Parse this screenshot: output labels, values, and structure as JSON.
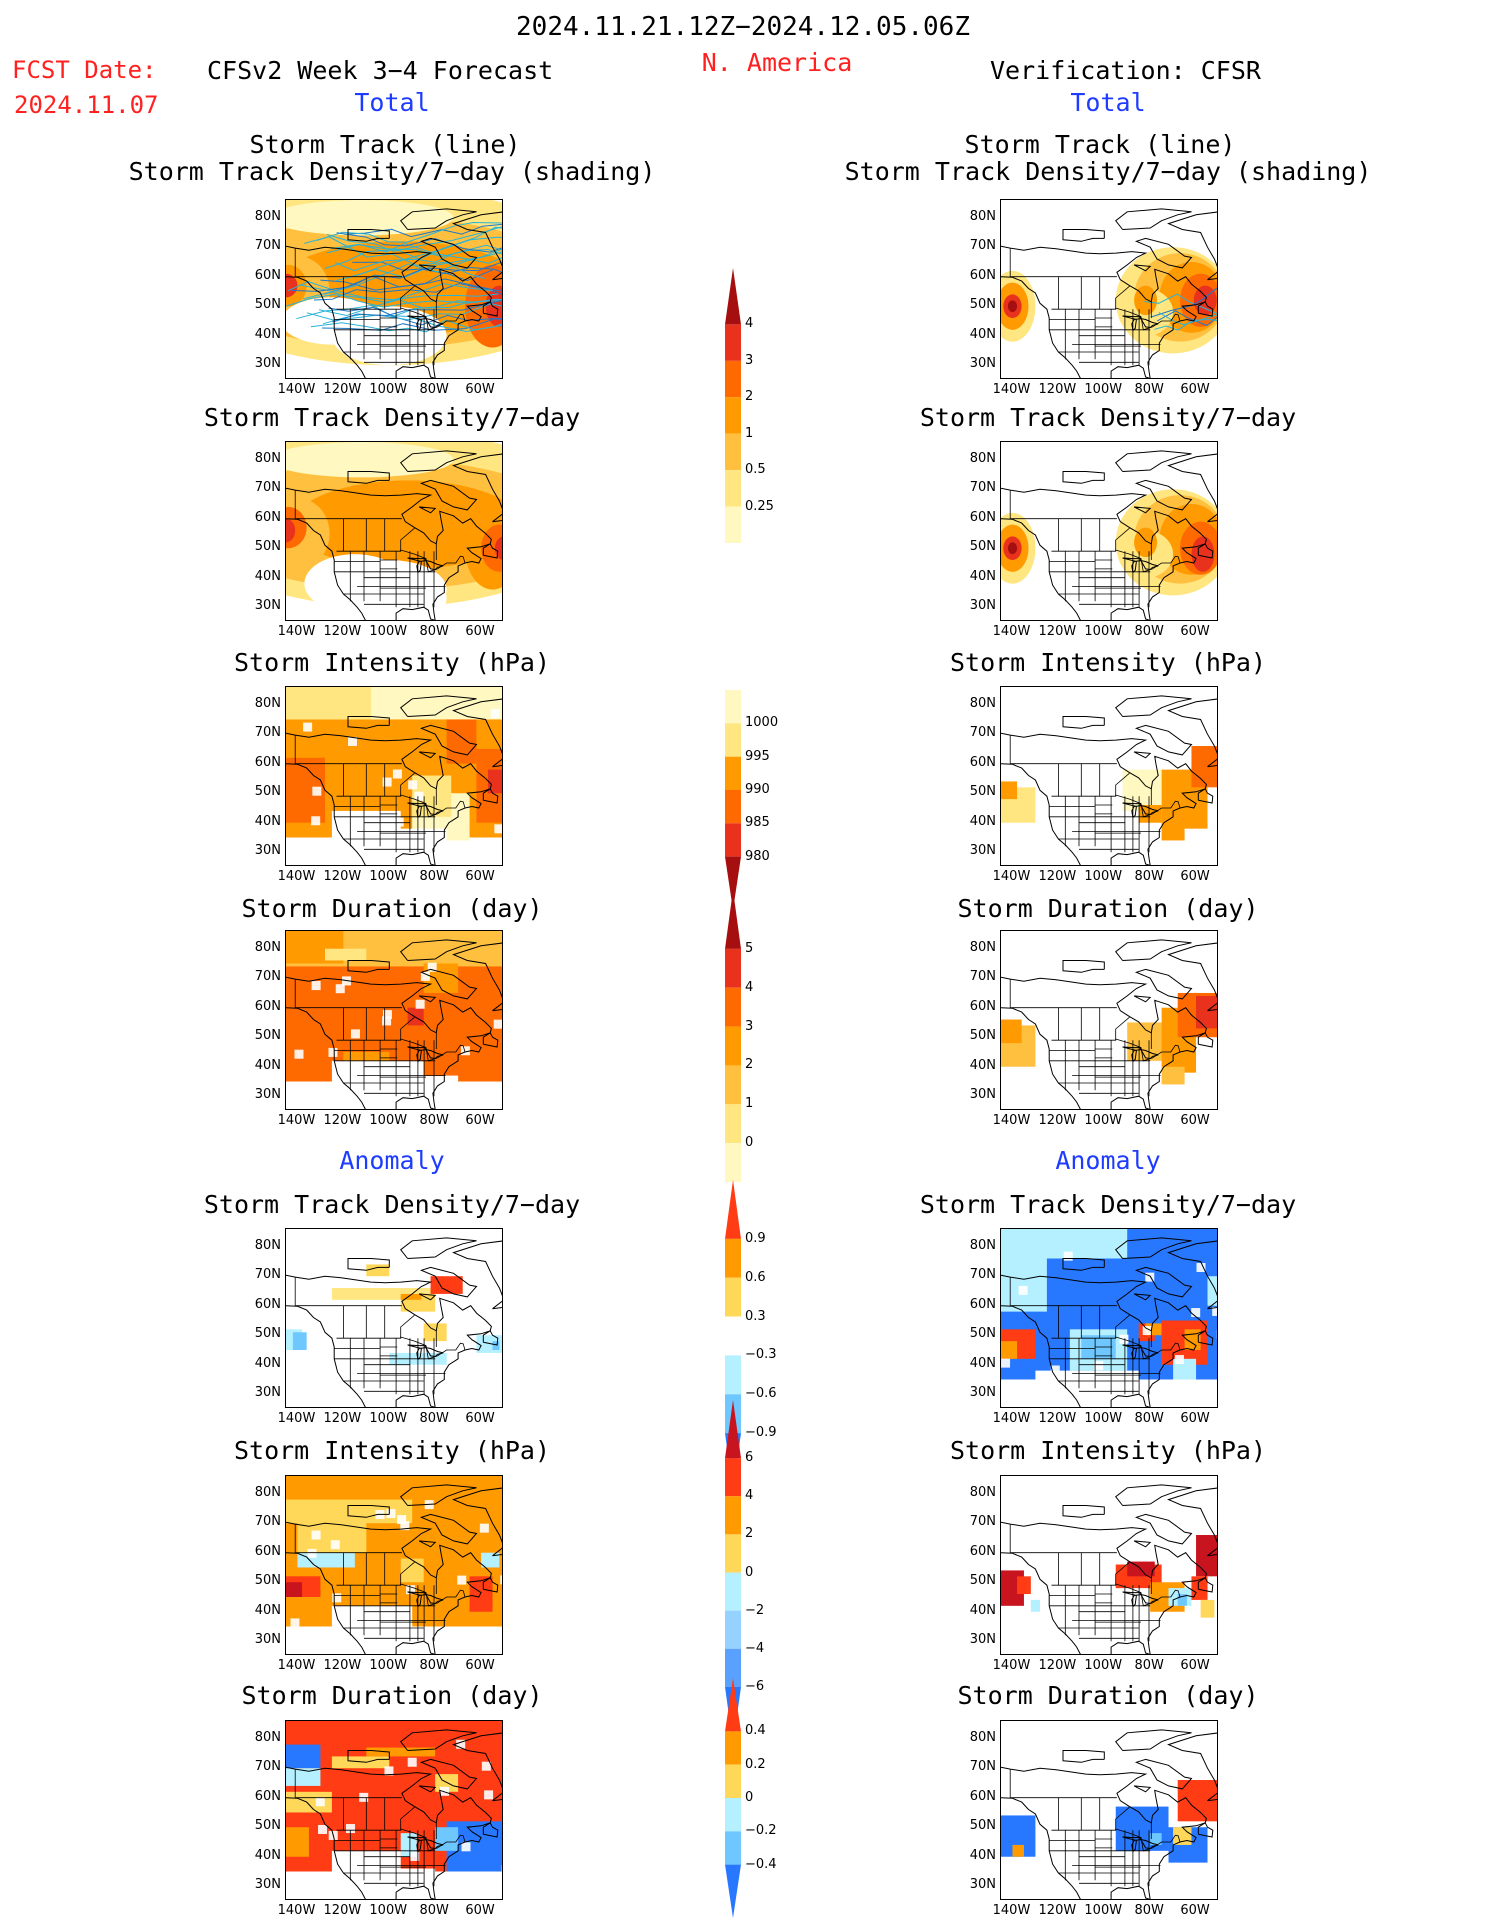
{
  "header": {
    "date_range": "2024.11.21.12Z−2024.12.05.06Z",
    "region": "N. America",
    "fcst_label": "FCST Date:",
    "fcst_date": "2024.11.07",
    "left_title": "CFSv2 Week 3−4 Forecast",
    "right_title": "Verification: CFSR",
    "left_total": "Total",
    "right_total": "Total",
    "left_anomaly": "Anomaly",
    "right_anomaly": "Anomaly"
  },
  "axes": {
    "lat_labels": [
      "80N",
      "70N",
      "60N",
      "50N",
      "40N",
      "30N"
    ],
    "lon_labels": [
      "140W",
      "120W",
      "100W",
      "80W",
      "60W"
    ]
  },
  "panels": {
    "track_line": "Storm Track (line)",
    "track_shading": "Storm Track Density/7−day (shading)",
    "density": "Storm Track Density/7−day",
    "intensity": "Storm Intensity (hPa)",
    "duration": "Storm Duration (day)"
  },
  "colorbars": {
    "density_total": {
      "labels": [
        "4",
        "3",
        "2",
        "1",
        "0.5",
        "0.25"
      ],
      "colors": [
        "#a50f0f",
        "#e8321e",
        "#ff6a00",
        "#ff9a00",
        "#ffc040",
        "#ffe680",
        "#fff8c0"
      ]
    },
    "intensity_total": {
      "labels": [
        "1000",
        "995",
        "990",
        "985",
        "980"
      ],
      "colors": [
        "#fff8c0",
        "#ffe680",
        "#ff9a00",
        "#ff6a00",
        "#e8321e",
        "#a50f0f"
      ]
    },
    "duration_total": {
      "labels": [
        "5",
        "4",
        "3",
        "2",
        "1",
        "0"
      ],
      "colors": [
        "#a50f0f",
        "#e8321e",
        "#ff6a00",
        "#ff9a00",
        "#ffc040",
        "#ffe680",
        "#fff8c0"
      ]
    },
    "density_anom": {
      "labels": [
        "0.9",
        "0.6",
        "0.3",
        "−0.3",
        "−0.6",
        "−0.9"
      ],
      "colors": [
        "#ff3c14",
        "#ff9a00",
        "#ffd85a",
        "#ffffff",
        "#b4f0ff",
        "#6ec8ff",
        "#2878ff"
      ]
    },
    "intensity_anom": {
      "labels": [
        "6",
        "4",
        "2",
        "0",
        "−2",
        "−4",
        "−6"
      ],
      "colors": [
        "#c8141e",
        "#ff3c14",
        "#ff9a00",
        "#ffd85a",
        "#b4f0ff",
        "#96d2ff",
        "#5aa0ff",
        "#2878ff"
      ]
    },
    "duration_anom": {
      "labels": [
        "0.4",
        "0.2",
        "0",
        "−0.2",
        "−0.4"
      ],
      "colors": [
        "#ff3c14",
        "#ff9a00",
        "#ffd85a",
        "#b4f0ff",
        "#6ec8ff",
        "#2878ff"
      ]
    }
  }
}
